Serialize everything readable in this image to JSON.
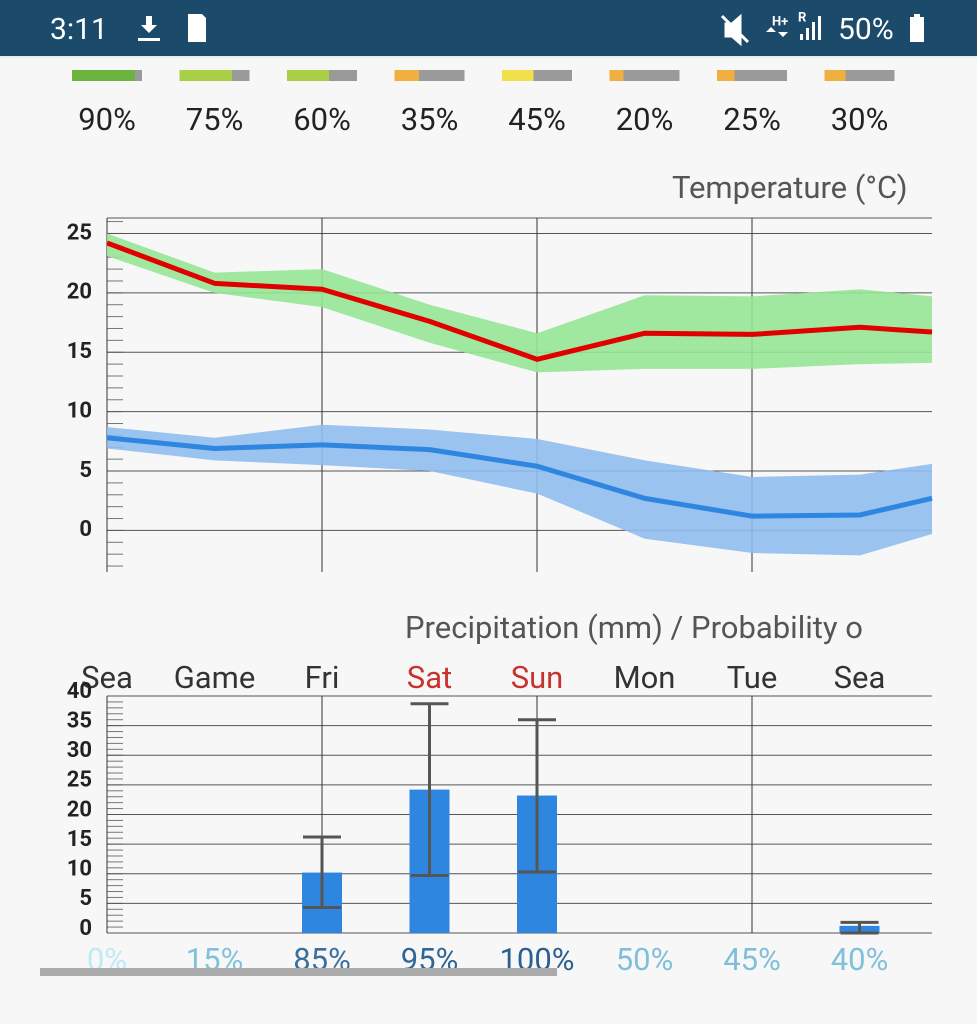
{
  "status_bar": {
    "time": "3:11",
    "network": "H+",
    "roaming": "R",
    "battery": "50%"
  },
  "confidence": {
    "values": [
      90,
      75,
      60,
      35,
      45,
      20,
      25,
      30
    ],
    "value_labels": [
      "90%",
      "75%",
      "60%",
      "35%",
      "45%",
      "20%",
      "25%",
      "30%"
    ],
    "colors": [
      "#6db33f",
      "#a8cf45",
      "#a8cf45",
      "#f0b040",
      "#f2e04a",
      "#f0b040",
      "#f0b040",
      "#f0b040"
    ]
  },
  "chart_data": [
    {
      "type": "line",
      "title": "Temperature (°C)",
      "x": [
        0,
        1,
        2,
        3,
        4,
        5,
        6,
        7,
        7.67
      ],
      "xlim": [
        0,
        7.67
      ],
      "ylim": [
        -3.5,
        26.3
      ],
      "yticks": [
        0,
        5,
        10,
        15,
        20,
        25
      ],
      "grid": true,
      "series": [
        {
          "color": "#e00000",
          "values": [
            24.2,
            20.8,
            20.3,
            17.6,
            14.4,
            16.6,
            16.5,
            17.1,
            16.7
          ],
          "band": {
            "color": "#96e596",
            "upper": [
              25,
              21.7,
              22,
              19,
              16.6,
              19.8,
              19.7,
              20.3,
              19.7
            ],
            "lower": [
              23.1,
              20,
              18.8,
              15.8,
              13.3,
              13.6,
              13.6,
              14,
              14.1
            ]
          }
        },
        {
          "color": "#2e86e0",
          "values": [
            7.8,
            6.9,
            7.2,
            6.8,
            5.4,
            2.7,
            1.2,
            1.3,
            2.7
          ],
          "band": {
            "color": "#8fbcee",
            "upper": [
              8.7,
              7.8,
              8.9,
              8.5,
              7.7,
              5.9,
              4.5,
              4.7,
              5.6
            ],
            "lower": [
              6.9,
              5.9,
              5.5,
              5,
              3.1,
              -0.7,
              -1.9,
              -2.1,
              -0.3
            ]
          }
        }
      ]
    },
    {
      "type": "bar",
      "title": "Precipitation (mm) / Probability o",
      "categories": [
        "Sea",
        "Game",
        "Fri",
        "Sat",
        "Sun",
        "Mon",
        "Tue",
        "Sea"
      ],
      "category_colors": [
        "#333333",
        "#333333",
        "#333333",
        "#c8332e",
        "#c8332e",
        "#333333",
        "#333333",
        "#333333"
      ],
      "values": [
        null,
        null,
        10.2,
        24.2,
        23.2,
        null,
        null,
        1.2
      ],
      "error_low": [
        null,
        null,
        4.3,
        9.7,
        10.3,
        null,
        null,
        0
      ],
      "error_high": [
        null,
        null,
        16.2,
        38.7,
        36,
        null,
        null,
        1.8
      ],
      "color": "#2e86e0",
      "ylim": [
        0,
        40
      ],
      "yticks": [
        0,
        5,
        10,
        15,
        20,
        25,
        30,
        35,
        40
      ],
      "grid": true,
      "probability": {
        "values": [
          0,
          15,
          85,
          95,
          100,
          50,
          45,
          40
        ],
        "value_labels": [
          "0%",
          "15%",
          "85%",
          "95%",
          "100%",
          "50%",
          "45%",
          "40%"
        ],
        "colors": [
          "#bfe9f5",
          "#7fc3db",
          "#3a6f9e",
          "#2f6695",
          "#2a5f90",
          "#7fbfd9",
          "#7fbfd9",
          "#80c0da"
        ]
      }
    }
  ]
}
